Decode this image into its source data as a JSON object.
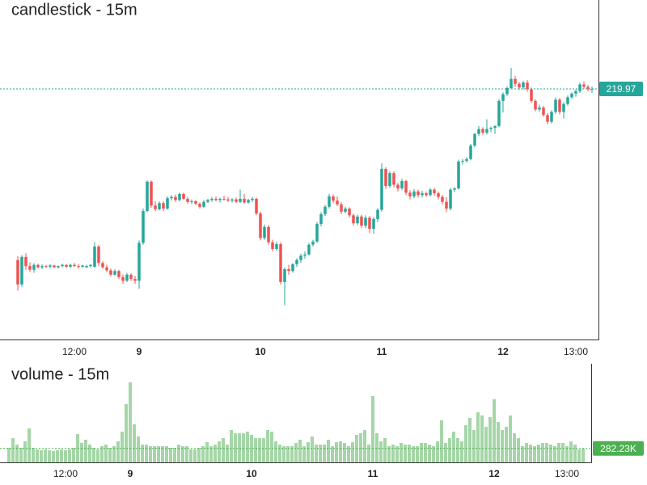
{
  "chart_data": {
    "type": "candlestick",
    "title": "candlestick - 15m",
    "categories": [
      null,
      null,
      null,
      null,
      null,
      null,
      null,
      null,
      null,
      null,
      null,
      null,
      null,
      null,
      "12:00",
      null,
      null,
      null,
      null,
      null,
      null,
      null,
      null,
      null,
      null,
      null,
      null,
      null,
      null,
      null,
      "9",
      null,
      null,
      null,
      null,
      null,
      null,
      null,
      null,
      null,
      null,
      null,
      null,
      null,
      null,
      null,
      null,
      null,
      null,
      null,
      null,
      null,
      null,
      null,
      null,
      null,
      null,
      null,
      null,
      null,
      "10",
      null,
      null,
      null,
      null,
      null,
      null,
      null,
      null,
      null,
      null,
      null,
      null,
      null,
      null,
      null,
      null,
      null,
      null,
      null,
      null,
      null,
      null,
      null,
      null,
      null,
      null,
      null,
      null,
      null,
      "11",
      null,
      null,
      null,
      null,
      null,
      null,
      null,
      null,
      null,
      null,
      null,
      null,
      null,
      null,
      null,
      null,
      null,
      null,
      null,
      null,
      null,
      null,
      null,
      null,
      null,
      null,
      null,
      null,
      null,
      "12",
      null,
      null,
      null,
      null,
      null,
      null,
      null,
      null,
      null,
      null,
      null,
      null,
      null,
      null,
      null,
      null,
      null,
      "13:00",
      null,
      null,
      null,
      null
    ],
    "ohlc": [
      [
        192.0,
        192.6,
        187.0,
        188.0
      ],
      [
        188.0,
        192.8,
        187.6,
        192.5
      ],
      [
        192.5,
        193.1,
        190.4,
        191.0
      ],
      [
        191.0,
        191.6,
        190.0,
        190.4
      ],
      [
        190.4,
        191.5,
        189.9,
        191.2
      ],
      [
        191.2,
        191.4,
        190.6,
        190.8
      ],
      [
        190.8,
        191.3,
        190.5,
        191.0
      ],
      [
        191.0,
        191.2,
        190.7,
        190.9
      ],
      [
        190.9,
        191.3,
        190.6,
        191.1
      ],
      [
        191.1,
        191.2,
        190.7,
        190.8
      ],
      [
        190.8,
        191.1,
        190.6,
        191.0
      ],
      [
        191.0,
        191.4,
        190.8,
        191.2
      ],
      [
        191.2,
        191.3,
        190.7,
        190.9
      ],
      [
        190.9,
        191.4,
        190.7,
        191.2
      ],
      [
        191.2,
        191.5,
        190.9,
        191.0
      ],
      [
        191.0,
        191.3,
        190.6,
        190.9
      ],
      [
        190.9,
        191.2,
        190.7,
        191.1
      ],
      [
        190.8,
        191.2,
        190.7,
        191.0
      ],
      [
        191.0,
        191.3,
        190.8,
        191.2
      ],
      [
        190.9,
        194.9,
        190.7,
        194.2
      ],
      [
        194.2,
        194.5,
        191.0,
        191.5
      ],
      [
        191.5,
        191.8,
        190.6,
        190.8
      ],
      [
        190.8,
        191.2,
        190.0,
        190.3
      ],
      [
        190.3,
        190.6,
        189.3,
        189.6
      ],
      [
        189.6,
        190.5,
        189.4,
        190.2
      ],
      [
        190.2,
        190.4,
        188.9,
        189.2
      ],
      [
        189.2,
        189.6,
        188.1,
        188.6
      ],
      [
        188.6,
        189.9,
        188.4,
        189.6
      ],
      [
        189.6,
        189.8,
        188.6,
        188.9
      ],
      [
        188.9,
        189.4,
        188.1,
        188.6
      ],
      [
        188.6,
        195.2,
        187.3,
        194.8
      ],
      [
        194.8,
        200.4,
        194.5,
        200.0
      ],
      [
        200.0,
        205.0,
        199.8,
        204.8
      ],
      [
        204.8,
        205.0,
        200.5,
        200.9
      ],
      [
        200.9,
        201.6,
        200.0,
        200.3
      ],
      [
        200.3,
        201.6,
        200.1,
        201.3
      ],
      [
        201.3,
        201.6,
        200.0,
        200.4
      ],
      [
        200.4,
        202.4,
        200.2,
        202.1
      ],
      [
        202.1,
        202.6,
        201.7,
        202.3
      ],
      [
        202.3,
        202.7,
        201.5,
        201.8
      ],
      [
        201.8,
        203.0,
        201.6,
        202.8
      ],
      [
        202.8,
        203.0,
        201.8,
        202.0
      ],
      [
        202.0,
        202.3,
        201.2,
        201.5
      ],
      [
        201.5,
        201.9,
        201.1,
        201.6
      ],
      [
        201.6,
        201.8,
        200.9,
        201.2
      ],
      [
        201.2,
        201.4,
        200.4,
        200.7
      ],
      [
        200.7,
        201.8,
        200.5,
        201.5
      ],
      [
        201.5,
        202.0,
        201.3,
        201.8
      ],
      [
        201.8,
        202.3,
        201.5,
        202.0
      ],
      [
        202.0,
        202.4,
        201.6,
        201.8
      ],
      [
        201.8,
        202.2,
        201.4,
        202.0
      ],
      [
        202.0,
        202.5,
        201.7,
        201.9
      ],
      [
        201.9,
        202.3,
        201.5,
        201.7
      ],
      [
        201.7,
        202.1,
        201.4,
        201.9
      ],
      [
        201.9,
        202.2,
        201.3,
        201.5
      ],
      [
        201.5,
        203.5,
        201.3,
        202.0
      ],
      [
        202.0,
        202.8,
        201.2,
        201.4
      ],
      [
        201.4,
        202.0,
        201.2,
        201.8
      ],
      [
        201.8,
        202.3,
        201.5,
        202.0
      ],
      [
        202.0,
        202.2,
        199.3,
        199.6
      ],
      [
        199.6,
        199.9,
        195.2,
        195.6
      ],
      [
        195.6,
        197.8,
        195.3,
        197.4
      ],
      [
        197.4,
        197.7,
        194.5,
        194.9
      ],
      [
        194.9,
        195.3,
        193.4,
        193.8
      ],
      [
        193.8,
        195.0,
        193.5,
        194.6
      ],
      [
        194.6,
        194.9,
        188.0,
        188.4
      ],
      [
        188.4,
        190.8,
        184.6,
        190.5
      ],
      [
        190.5,
        191.2,
        189.6,
        190.2
      ],
      [
        190.2,
        191.5,
        189.9,
        191.3
      ],
      [
        191.3,
        192.3,
        190.9,
        192.0
      ],
      [
        192.0,
        193.0,
        191.5,
        192.7
      ],
      [
        192.7,
        193.4,
        192.2,
        192.9
      ],
      [
        192.9,
        194.8,
        192.7,
        194.5
      ],
      [
        194.5,
        195.3,
        194.2,
        195.0
      ],
      [
        195.0,
        198.2,
        194.8,
        197.9
      ],
      [
        197.9,
        199.8,
        197.5,
        199.5
      ],
      [
        199.5,
        201.0,
        199.2,
        200.7
      ],
      [
        200.7,
        202.8,
        200.4,
        202.4
      ],
      [
        202.4,
        202.7,
        201.3,
        201.7
      ],
      [
        201.7,
        202.4,
        200.8,
        201.1
      ],
      [
        201.1,
        201.5,
        199.5,
        199.9
      ],
      [
        199.9,
        200.7,
        199.6,
        200.4
      ],
      [
        200.4,
        200.6,
        198.9,
        199.3
      ],
      [
        199.3,
        199.6,
        197.6,
        198.0
      ],
      [
        198.0,
        199.4,
        197.7,
        199.1
      ],
      [
        199.1,
        199.4,
        197.2,
        197.6
      ],
      [
        197.6,
        199.3,
        197.2,
        198.9
      ],
      [
        198.9,
        199.2,
        196.4,
        197.1
      ],
      [
        197.1,
        199.0,
        196.3,
        198.7
      ],
      [
        198.7,
        200.5,
        198.2,
        200.2
      ],
      [
        200.2,
        207.8,
        199.9,
        206.9
      ],
      [
        206.9,
        207.2,
        203.6,
        204.1
      ],
      [
        204.1,
        206.5,
        203.8,
        206.2
      ],
      [
        206.2,
        206.5,
        203.9,
        204.3
      ],
      [
        204.3,
        204.6,
        203.2,
        203.7
      ],
      [
        203.7,
        205.3,
        203.4,
        204.9
      ],
      [
        204.9,
        205.1,
        202.6,
        203.0
      ],
      [
        203.0,
        203.4,
        201.9,
        202.4
      ],
      [
        202.4,
        203.6,
        202.1,
        203.2
      ],
      [
        203.2,
        203.5,
        202.2,
        202.6
      ],
      [
        202.6,
        203.3,
        202.2,
        202.9
      ],
      [
        202.9,
        203.2,
        202.3,
        202.6
      ],
      [
        202.6,
        203.8,
        202.4,
        203.5
      ],
      [
        203.5,
        203.8,
        202.5,
        202.9
      ],
      [
        202.9,
        203.2,
        201.9,
        202.3
      ],
      [
        202.3,
        202.6,
        201.1,
        201.5
      ],
      [
        201.5,
        202.3,
        199.9,
        200.4
      ],
      [
        200.4,
        203.8,
        200.1,
        203.5
      ],
      [
        203.5,
        203.9,
        203.1,
        203.7
      ],
      [
        203.7,
        208.4,
        203.5,
        208.1
      ],
      [
        208.1,
        208.5,
        207.6,
        208.2
      ],
      [
        208.2,
        208.8,
        207.9,
        208.5
      ],
      [
        208.5,
        211.0,
        208.3,
        210.7
      ],
      [
        210.7,
        212.8,
        210.4,
        212.6
      ],
      [
        212.6,
        213.9,
        212.3,
        213.4
      ],
      [
        213.4,
        213.7,
        212.4,
        212.8
      ],
      [
        212.8,
        215.0,
        212.5,
        213.4
      ],
      [
        213.4,
        213.8,
        212.9,
        213.6
      ],
      [
        213.6,
        214.0,
        212.6,
        213.9
      ],
      [
        213.9,
        218.3,
        213.7,
        218.0
      ],
      [
        218.0,
        219.4,
        216.1,
        219.1
      ],
      [
        219.1,
        220.4,
        218.8,
        220.1
      ],
      [
        220.1,
        223.4,
        219.9,
        221.6
      ],
      [
        221.6,
        222.1,
        220.3,
        220.8
      ],
      [
        220.8,
        221.1,
        219.8,
        220.2
      ],
      [
        220.2,
        221.3,
        219.9,
        221.0
      ],
      [
        221.0,
        221.4,
        219.5,
        219.9
      ],
      [
        219.9,
        220.2,
        217.7,
        218.0
      ],
      [
        218.0,
        218.3,
        216.3,
        216.6
      ],
      [
        216.6,
        217.4,
        216.2,
        216.9
      ],
      [
        216.9,
        217.2,
        215.4,
        215.7
      ],
      [
        215.7,
        216.0,
        214.2,
        214.6
      ],
      [
        214.6,
        216.5,
        214.3,
        216.2
      ],
      [
        216.2,
        218.6,
        215.9,
        218.2
      ],
      [
        218.2,
        218.5,
        215.8,
        216.2
      ],
      [
        216.2,
        217.8,
        215.1,
        217.5
      ],
      [
        217.5,
        218.9,
        217.2,
        218.6
      ],
      [
        218.6,
        219.4,
        218.3,
        219.2
      ],
      [
        219.2,
        219.9,
        218.7,
        219.6
      ],
      [
        219.6,
        221.0,
        219.3,
        220.7
      ],
      [
        220.7,
        221.2,
        220.0,
        220.3
      ],
      [
        220.3,
        220.6,
        219.6,
        219.9
      ],
      [
        219.9,
        220.4,
        219.3,
        219.97
      ]
    ],
    "up_color": "#26a69a",
    "down_color": "#ef5350",
    "title_color": "#0000ff",
    "ylim": [
      179,
      234.5
    ],
    "yticks": [
      180,
      185,
      190,
      195,
      200,
      205,
      210,
      215,
      220,
      225,
      230
    ],
    "grid": true,
    "volume": {
      "title": "volume - 15m",
      "title_color": "#008000",
      "color": "#a5d6a7",
      "label_color": "#4caf50",
      "values": [
        295200,
        492000,
        360800,
        295200,
        426400,
        688800,
        295200,
        262400,
        246000,
        262400,
        246000,
        229600,
        246000,
        262400,
        246000,
        262400,
        295200,
        574000,
        393600,
        459200,
        360800,
        295200,
        262400,
        328000,
        360800,
        295200,
        328000,
        426400,
        623200,
        1180800,
        1623600,
        770800,
        524800,
        360800,
        360800,
        328000,
        328000,
        328000,
        328000,
        328000,
        295200,
        295200,
        360800,
        328000,
        328000,
        262400,
        262400,
        295200,
        328000,
        410000,
        328000,
        360800,
        426400,
        492000,
        360800,
        656000,
        590400,
        590400,
        590400,
        623200,
        557600,
        492000,
        492000,
        492000,
        656000,
        623200,
        426400,
        360800,
        328000,
        328000,
        328000,
        393600,
        459200,
        328000,
        410000,
        524800,
        360800,
        360800,
        360800,
        459200,
        328000,
        410000,
        426400,
        393600,
        328000,
        410000,
        557600,
        590400,
        656000,
        360800,
        1344800,
        590400,
        426400,
        492000,
        328000,
        360800,
        328000,
        393600,
        360800,
        360800,
        328000,
        328000,
        393600,
        393600,
        360800,
        328000,
        426400,
        852800,
        393600,
        492000,
        623200,
        492000,
        426400,
        754400,
        902000,
        656000,
        1016800,
        951200,
        721600,
        918400,
        1279200,
        820000,
        656000,
        721600,
        951200,
        590400,
        492000,
        328000,
        393600,
        360800,
        328000,
        360800,
        393600,
        393600,
        360800,
        328000,
        393600,
        393600,
        328000,
        426400,
        360800,
        262400,
        282230
      ],
      "last_label": "282.23K",
      "ylim": [
        0,
        2000000
      ],
      "yticks": [
        750000,
        1500000
      ]
    }
  }
}
